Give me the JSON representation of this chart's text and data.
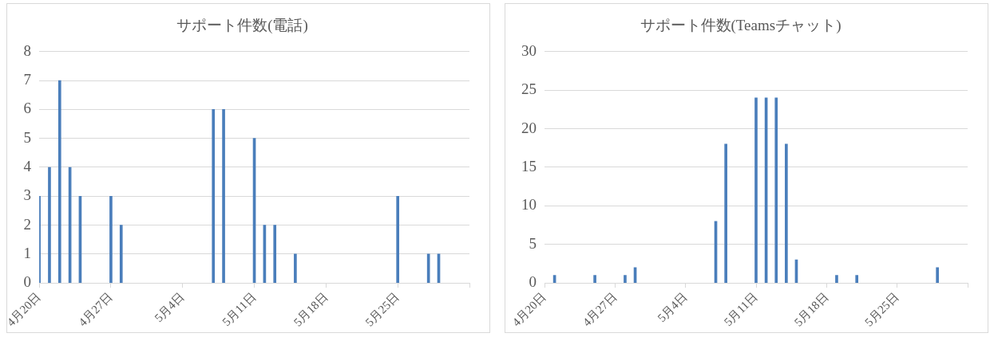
{
  "chart_data": [
    {
      "type": "bar",
      "title": "サポート件数(電話)",
      "x": [
        "--04-20",
        "--04-21",
        "--04-22",
        "--04-23",
        "--04-24",
        "--04-27",
        "--04-28",
        "--05-07",
        "--05-08",
        "--05-11",
        "--05-12",
        "--05-13",
        "--05-15",
        "--05-25",
        "--05-28",
        "--05-29"
      ],
      "values": [
        3,
        4,
        7,
        4,
        3,
        3,
        2,
        6,
        6,
        5,
        2,
        2,
        1,
        3,
        1,
        1
      ],
      "color": "#4a7ebb",
      "xlim": [
        "--04-20",
        "--06-01"
      ],
      "xticks": [
        {
          "value": "--04-20",
          "label": "4月20日"
        },
        {
          "value": "--04-27",
          "label": "4月27日"
        },
        {
          "value": "--05-04",
          "label": "5月4日"
        },
        {
          "value": "--05-11",
          "label": "5月11日"
        },
        {
          "value": "--05-18",
          "label": "5月18日"
        },
        {
          "value": "--05-25",
          "label": "5月25日"
        },
        {
          "value": "--06-01",
          "label": null
        }
      ],
      "ylim": [
        0,
        8
      ],
      "yticks": [
        0,
        1,
        2,
        3,
        4,
        5,
        6,
        7,
        8
      ],
      "grid": "y",
      "legend": false
    },
    {
      "type": "bar",
      "title": "サポート件数(Teamsチャット)",
      "x": [
        "--04-21",
        "--04-25",
        "--04-28",
        "--04-29",
        "--05-07",
        "--05-08",
        "--05-11",
        "--05-12",
        "--05-13",
        "--05-14",
        "--05-15",
        "--05-19",
        "--05-21",
        "--05-29"
      ],
      "values": [
        1,
        1,
        1,
        2,
        8,
        18,
        24,
        24,
        24,
        18,
        3,
        1,
        1,
        2
      ],
      "color": "#4a7ebb",
      "xlim": [
        "--04-20",
        "--06-01"
      ],
      "xticks": [
        {
          "value": "--04-20",
          "label": "4月20日"
        },
        {
          "value": "--04-27",
          "label": "4月27日"
        },
        {
          "value": "--05-04",
          "label": "5月4日"
        },
        {
          "value": "--05-11",
          "label": "5月11日"
        },
        {
          "value": "--05-18",
          "label": "5月18日"
        },
        {
          "value": "--05-25",
          "label": "5月25日"
        },
        {
          "value": "--06-01",
          "label": null
        }
      ],
      "ylim": [
        0,
        30
      ],
      "yticks": [
        0,
        5,
        10,
        15,
        20,
        25,
        30
      ],
      "grid": "y",
      "legend": false
    }
  ]
}
